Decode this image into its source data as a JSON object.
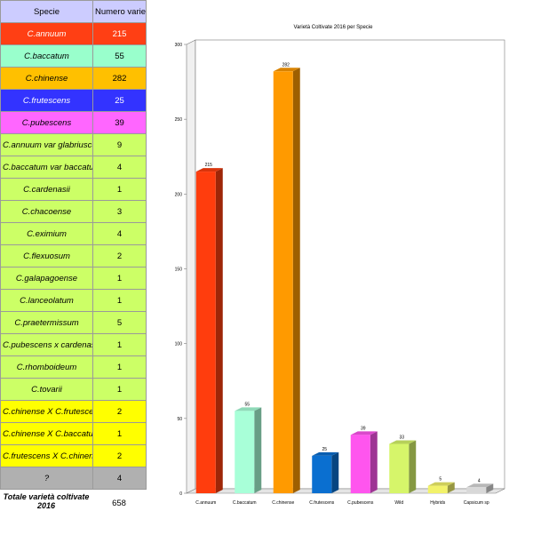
{
  "table": {
    "headers": [
      "Specie",
      "Numero varietà"
    ],
    "rows": [
      {
        "name": "C.annuum",
        "count": "215",
        "color": "#ff3f14",
        "text": "#ffffff"
      },
      {
        "name": "C.baccatum",
        "count": "55",
        "color": "#99ffcc",
        "text": "#000000"
      },
      {
        "name": "C.chinense",
        "count": "282",
        "color": "#ffc000",
        "text": "#000000"
      },
      {
        "name": "C.frutescens",
        "count": "25",
        "color": "#3333ff",
        "text": "#ffffff"
      },
      {
        "name": "C.pubescens",
        "count": "39",
        "color": "#ff66ff",
        "text": "#000000"
      },
      {
        "name": "C.annuum var glabriusculum",
        "count": "9",
        "color": "#ccff66",
        "text": "#000000"
      },
      {
        "name": "C.baccatum var baccatum",
        "count": "4",
        "color": "#ccff66",
        "text": "#000000"
      },
      {
        "name": "C.cardenasii",
        "count": "1",
        "color": "#ccff66",
        "text": "#000000"
      },
      {
        "name": "C.chacoense",
        "count": "3",
        "color": "#ccff66",
        "text": "#000000"
      },
      {
        "name": "C.eximium",
        "count": "4",
        "color": "#ccff66",
        "text": "#000000"
      },
      {
        "name": "C.flexuosum",
        "count": "2",
        "color": "#ccff66",
        "text": "#000000"
      },
      {
        "name": "C.galapagoense",
        "count": "1",
        "color": "#ccff66",
        "text": "#000000"
      },
      {
        "name": "C.lanceolatum",
        "count": "1",
        "color": "#ccff66",
        "text": "#000000"
      },
      {
        "name": "C.praetermissum",
        "count": "5",
        "color": "#ccff66",
        "text": "#000000"
      },
      {
        "name": "C.pubescens x cardenasii",
        "count": "1",
        "color": "#ccff66",
        "text": "#000000"
      },
      {
        "name": "C.rhomboideum",
        "count": "1",
        "color": "#ccff66",
        "text": "#000000"
      },
      {
        "name": "C.tovarii",
        "count": "1",
        "color": "#ccff66",
        "text": "#000000"
      },
      {
        "name": "C.chinense X C.frutescens",
        "count": "2",
        "color": "#ffff00",
        "text": "#000000"
      },
      {
        "name": "C.chinense X C.baccatum",
        "count": "1",
        "color": "#ffff00",
        "text": "#000000"
      },
      {
        "name": "C.frutescens X C.chinense",
        "count": "2",
        "color": "#ffff00",
        "text": "#000000"
      },
      {
        "name": "?",
        "count": "4",
        "color": "#b0b0b0",
        "text": "#000000"
      }
    ],
    "total_label": "Totale varietà coltivate 2016",
    "total_value": "658"
  },
  "chart_data": {
    "type": "bar",
    "title": "Varietà Coltivate 2016 per Specie",
    "categories": [
      "C.annuum",
      "C.baccatum",
      "C.chinense",
      "C.frutescens",
      "C.pubescens",
      "Wild",
      "Hybrids",
      "Capsicum sp"
    ],
    "values": [
      215,
      55,
      282,
      25,
      39,
      33,
      5,
      4
    ],
    "data_labels": [
      "215",
      "55",
      "282",
      "25",
      "39",
      "33",
      "5",
      "4"
    ],
    "colors": [
      "#ff3d0d",
      "#a8ffd8",
      "#ff9a00",
      "#0a6fd0",
      "#ff55ee",
      "#d6f56a",
      "#f2f26a",
      "#d8d8d8"
    ],
    "yticks": [
      0,
      50,
      100,
      150,
      200,
      250,
      300
    ],
    "ylim": [
      0,
      300
    ],
    "xlabel": "",
    "ylabel": "",
    "grid": false,
    "legend": "none"
  }
}
